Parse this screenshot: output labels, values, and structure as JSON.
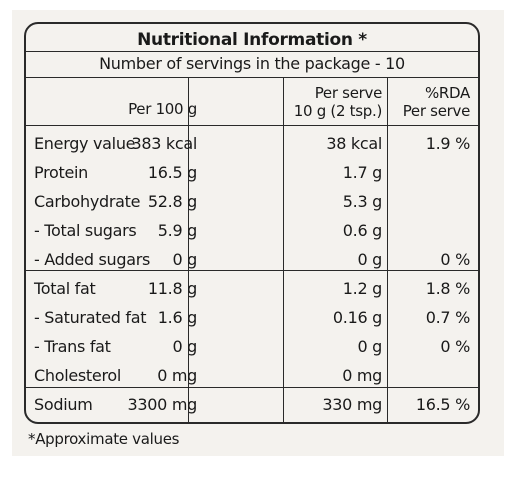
{
  "title": "Nutritional Information *",
  "subtitle": "Number of servings in the package - 10",
  "columns": {
    "per100_label": "Per 100 g",
    "perserve_line1": "Per serve",
    "perserve_line2": "10 g (2 tsp.)",
    "rda_line1": "%RDA",
    "rda_line2": "Per serve"
  },
  "rows": [
    {
      "name": "Energy value",
      "per100": "383 kcal",
      "perserve": "38 kcal",
      "rda": "1.9 %"
    },
    {
      "name": "Protein",
      "per100": "16.5 g",
      "perserve": "1.7 g",
      "rda": ""
    },
    {
      "name": "Carbohydrate",
      "per100": "52.8 g",
      "perserve": "5.3 g",
      "rda": ""
    },
    {
      "name": " - Total sugars",
      "per100": "5.9 g",
      "perserve": "0.6 g",
      "rda": ""
    },
    {
      "name": " - Added sugars",
      "per100": "0 g",
      "perserve": "0 g",
      "rda": "0 %"
    },
    {
      "name": "Total fat",
      "per100": "11.8 g",
      "perserve": "1.2 g",
      "rda": "1.8 %"
    },
    {
      "name": " - Saturated fat",
      "per100": "1.6 g",
      "perserve": "0.16 g",
      "rda": "0.7 %"
    },
    {
      "name": " - Trans fat",
      "per100": "0 g",
      "perserve": "0 g",
      "rda": "0 %"
    },
    {
      "name": "Cholesterol",
      "per100": "0 mg",
      "perserve": "0 mg",
      "rda": ""
    },
    {
      "name": "Sodium",
      "per100": "3300 mg",
      "perserve": "330 mg",
      "rda": "16.5 %"
    }
  ],
  "footnote": "*Approximate values"
}
